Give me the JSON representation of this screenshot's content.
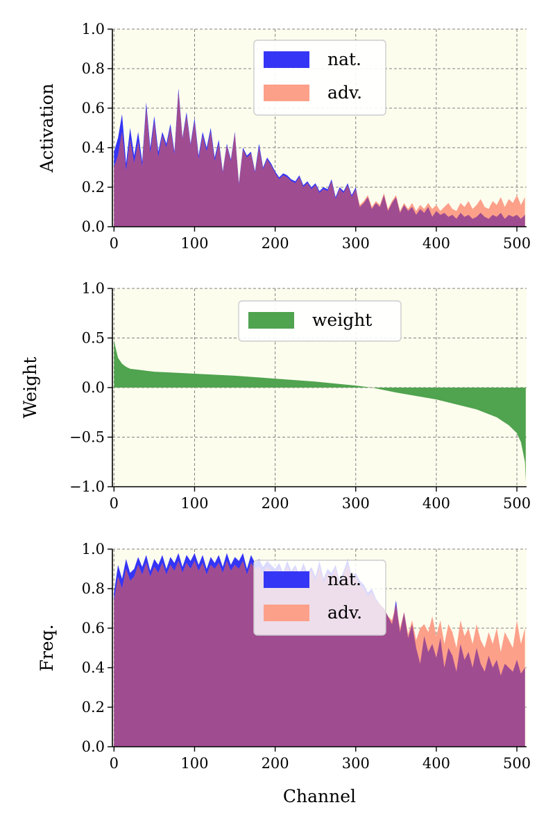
{
  "colors": {
    "plot_bg": "#fdfdee",
    "grid": "#808080",
    "nat": "#3535f5",
    "adv": "#fca08a",
    "overlap": "#a04c91",
    "weight": "#50a34f"
  },
  "chart_data": [
    {
      "type": "area",
      "ylabel": "Activation",
      "xlabel": "",
      "xlim": [
        -2,
        512
      ],
      "ylim": [
        0,
        1.0
      ],
      "xticks": [
        0,
        100,
        200,
        300,
        400,
        500
      ],
      "yticks": [
        0.0,
        0.2,
        0.4,
        0.6,
        0.8,
        1.0
      ],
      "ytick_labels": [
        "0.0",
        "0.2",
        "0.4",
        "0.6",
        "0.8",
        "1.0"
      ],
      "grid": true,
      "legend_position": "top-center",
      "series": [
        {
          "name": "nat.",
          "color": "#3535f5",
          "x": [
            0,
            5,
            10,
            15,
            20,
            25,
            30,
            35,
            40,
            45,
            50,
            55,
            60,
            65,
            70,
            75,
            80,
            85,
            90,
            95,
            100,
            105,
            110,
            115,
            120,
            125,
            130,
            135,
            140,
            145,
            150,
            155,
            160,
            165,
            170,
            175,
            180,
            185,
            190,
            195,
            200,
            205,
            210,
            215,
            220,
            225,
            230,
            235,
            240,
            245,
            250,
            255,
            260,
            265,
            270,
            275,
            280,
            285,
            290,
            295,
            300,
            305,
            310,
            315,
            320,
            325,
            330,
            335,
            340,
            345,
            350,
            355,
            360,
            365,
            370,
            375,
            380,
            385,
            390,
            395,
            400,
            405,
            410,
            415,
            420,
            425,
            430,
            435,
            440,
            445,
            450,
            455,
            460,
            465,
            470,
            475,
            480,
            485,
            490,
            495,
            500,
            505,
            510
          ],
          "values": [
            0.38,
            0.45,
            0.57,
            0.32,
            0.5,
            0.36,
            0.48,
            0.33,
            0.63,
            0.4,
            0.56,
            0.38,
            0.48,
            0.42,
            0.52,
            0.38,
            0.7,
            0.45,
            0.58,
            0.42,
            0.55,
            0.36,
            0.48,
            0.4,
            0.5,
            0.35,
            0.44,
            0.28,
            0.42,
            0.34,
            0.48,
            0.22,
            0.4,
            0.36,
            0.38,
            0.28,
            0.42,
            0.3,
            0.35,
            0.32,
            0.28,
            0.25,
            0.27,
            0.26,
            0.24,
            0.23,
            0.26,
            0.21,
            0.23,
            0.2,
            0.22,
            0.18,
            0.2,
            0.19,
            0.24,
            0.15,
            0.2,
            0.18,
            0.22,
            0.16,
            0.2,
            0.1,
            0.12,
            0.15,
            0.09,
            0.12,
            0.1,
            0.16,
            0.08,
            0.12,
            0.15,
            0.07,
            0.11,
            0.08,
            0.1,
            0.06,
            0.09,
            0.07,
            0.1,
            0.05,
            0.08,
            0.06,
            0.07,
            0.05,
            0.06,
            0.04,
            0.07,
            0.05,
            0.06,
            0.04,
            0.05,
            0.07,
            0.05,
            0.04,
            0.06,
            0.05,
            0.07,
            0.04,
            0.06,
            0.05,
            0.06,
            0.04,
            0.06
          ]
        },
        {
          "name": "adv.",
          "color": "#fca08a",
          "x": [
            0,
            5,
            10,
            15,
            20,
            25,
            30,
            35,
            40,
            45,
            50,
            55,
            60,
            65,
            70,
            75,
            80,
            85,
            90,
            95,
            100,
            105,
            110,
            115,
            120,
            125,
            130,
            135,
            140,
            145,
            150,
            155,
            160,
            165,
            170,
            175,
            180,
            185,
            190,
            195,
            200,
            205,
            210,
            215,
            220,
            225,
            230,
            235,
            240,
            245,
            250,
            255,
            260,
            265,
            270,
            275,
            280,
            285,
            290,
            295,
            300,
            305,
            310,
            315,
            320,
            325,
            330,
            335,
            340,
            345,
            350,
            355,
            360,
            365,
            370,
            375,
            380,
            385,
            390,
            395,
            400,
            405,
            410,
            415,
            420,
            425,
            430,
            435,
            440,
            445,
            450,
            455,
            460,
            465,
            470,
            475,
            480,
            485,
            490,
            495,
            500,
            505,
            510
          ],
          "values": [
            0.3,
            0.36,
            0.48,
            0.28,
            0.44,
            0.32,
            0.43,
            0.3,
            0.6,
            0.37,
            0.53,
            0.35,
            0.46,
            0.4,
            0.5,
            0.36,
            0.68,
            0.44,
            0.56,
            0.41,
            0.53,
            0.34,
            0.46,
            0.38,
            0.48,
            0.33,
            0.42,
            0.27,
            0.41,
            0.33,
            0.47,
            0.21,
            0.39,
            0.35,
            0.37,
            0.27,
            0.4,
            0.29,
            0.34,
            0.31,
            0.27,
            0.24,
            0.26,
            0.25,
            0.23,
            0.22,
            0.25,
            0.2,
            0.22,
            0.19,
            0.21,
            0.17,
            0.19,
            0.18,
            0.23,
            0.14,
            0.19,
            0.17,
            0.21,
            0.15,
            0.19,
            0.11,
            0.13,
            0.16,
            0.1,
            0.13,
            0.11,
            0.17,
            0.09,
            0.13,
            0.16,
            0.08,
            0.12,
            0.09,
            0.12,
            0.08,
            0.11,
            0.09,
            0.12,
            0.09,
            0.11,
            0.08,
            0.1,
            0.12,
            0.09,
            0.08,
            0.12,
            0.1,
            0.13,
            0.09,
            0.11,
            0.14,
            0.1,
            0.09,
            0.13,
            0.11,
            0.15,
            0.1,
            0.14,
            0.12,
            0.16,
            0.11,
            0.15
          ]
        }
      ]
    },
    {
      "type": "area",
      "ylabel": "Weight",
      "xlabel": "",
      "xlim": [
        -2,
        512
      ],
      "ylim": [
        -1.0,
        1.0
      ],
      "xticks": [
        0,
        100,
        200,
        300,
        400,
        500
      ],
      "yticks": [
        -1.0,
        -0.5,
        0.0,
        0.5,
        1.0
      ],
      "ytick_labels": [
        "−1.0",
        "−0.5",
        "0.0",
        "0.5",
        "1.0"
      ],
      "grid": true,
      "legend_position": "top-center",
      "series": [
        {
          "name": "weight",
          "color": "#50a34f",
          "x": [
            0,
            2,
            5,
            10,
            15,
            20,
            30,
            40,
            50,
            75,
            100,
            150,
            200,
            250,
            300,
            320,
            350,
            400,
            450,
            475,
            490,
            500,
            505,
            510,
            511
          ],
          "values": [
            0.48,
            0.4,
            0.3,
            0.24,
            0.21,
            0.19,
            0.18,
            0.17,
            0.16,
            0.15,
            0.14,
            0.12,
            0.09,
            0.06,
            0.02,
            0.0,
            -0.05,
            -0.12,
            -0.22,
            -0.3,
            -0.38,
            -0.46,
            -0.55,
            -0.75,
            -0.95
          ]
        }
      ]
    },
    {
      "type": "area",
      "ylabel": "Freq.",
      "xlabel": "Channel",
      "xlim": [
        -2,
        512
      ],
      "ylim": [
        0,
        1.0
      ],
      "xticks": [
        0,
        100,
        200,
        300,
        400,
        500
      ],
      "yticks": [
        0.0,
        0.2,
        0.4,
        0.6,
        0.8,
        1.0
      ],
      "ytick_labels": [
        "0.0",
        "0.2",
        "0.4",
        "0.6",
        "0.8",
        "1.0"
      ],
      "grid": true,
      "legend_position": "upper-center",
      "series": [
        {
          "name": "nat.",
          "color": "#3535f5",
          "x": [
            0,
            5,
            10,
            15,
            20,
            25,
            30,
            35,
            40,
            45,
            50,
            55,
            60,
            65,
            70,
            75,
            80,
            85,
            90,
            95,
            100,
            105,
            110,
            115,
            120,
            125,
            130,
            135,
            140,
            145,
            150,
            155,
            160,
            165,
            170,
            175,
            180,
            185,
            190,
            195,
            200,
            205,
            210,
            215,
            220,
            225,
            230,
            235,
            240,
            245,
            250,
            255,
            260,
            265,
            270,
            275,
            280,
            285,
            290,
            295,
            300,
            305,
            310,
            315,
            320,
            325,
            330,
            335,
            340,
            345,
            350,
            355,
            360,
            365,
            370,
            375,
            380,
            385,
            390,
            395,
            400,
            405,
            410,
            415,
            420,
            425,
            430,
            435,
            440,
            445,
            450,
            455,
            460,
            465,
            470,
            475,
            480,
            485,
            490,
            495,
            500,
            505,
            510
          ],
          "values": [
            0.78,
            0.92,
            0.85,
            0.95,
            0.88,
            0.9,
            0.96,
            0.91,
            0.97,
            0.89,
            0.95,
            0.92,
            0.97,
            0.9,
            0.96,
            0.93,
            0.98,
            0.91,
            0.97,
            0.94,
            0.98,
            0.92,
            0.97,
            0.9,
            0.96,
            0.93,
            0.97,
            0.91,
            0.98,
            0.92,
            0.96,
            0.94,
            0.98,
            0.9,
            0.97,
            0.93,
            0.95,
            0.91,
            0.94,
            0.92,
            0.9,
            0.93,
            0.88,
            0.94,
            0.89,
            0.92,
            0.87,
            0.93,
            0.88,
            0.91,
            0.86,
            0.94,
            0.85,
            0.9,
            0.88,
            0.92,
            0.84,
            0.89,
            0.95,
            0.86,
            0.88,
            0.84,
            0.82,
            0.78,
            0.8,
            0.75,
            0.72,
            0.7,
            0.66,
            0.62,
            0.74,
            0.58,
            0.68,
            0.55,
            0.62,
            0.5,
            0.42,
            0.56,
            0.48,
            0.52,
            0.45,
            0.55,
            0.4,
            0.5,
            0.46,
            0.38,
            0.52,
            0.44,
            0.48,
            0.4,
            0.5,
            0.42,
            0.38,
            0.46,
            0.4,
            0.44,
            0.36,
            0.42,
            0.4,
            0.38,
            0.44,
            0.37,
            0.4
          ]
        },
        {
          "name": "adv.",
          "color": "#fca08a",
          "x": [
            0,
            5,
            10,
            15,
            20,
            25,
            30,
            35,
            40,
            45,
            50,
            55,
            60,
            65,
            70,
            75,
            80,
            85,
            90,
            95,
            100,
            105,
            110,
            115,
            120,
            125,
            130,
            135,
            140,
            145,
            150,
            155,
            160,
            165,
            170,
            175,
            180,
            185,
            190,
            195,
            200,
            205,
            210,
            215,
            220,
            225,
            230,
            235,
            240,
            245,
            250,
            255,
            260,
            265,
            270,
            275,
            280,
            285,
            290,
            295,
            300,
            305,
            310,
            315,
            320,
            325,
            330,
            335,
            340,
            345,
            350,
            355,
            360,
            365,
            370,
            375,
            380,
            385,
            390,
            395,
            400,
            405,
            410,
            415,
            420,
            425,
            430,
            435,
            440,
            445,
            450,
            455,
            460,
            465,
            470,
            475,
            480,
            485,
            490,
            495,
            500,
            505,
            510
          ],
          "values": [
            0.74,
            0.86,
            0.8,
            0.9,
            0.84,
            0.86,
            0.92,
            0.87,
            0.93,
            0.86,
            0.91,
            0.88,
            0.93,
            0.87,
            0.92,
            0.89,
            0.94,
            0.88,
            0.93,
            0.9,
            0.94,
            0.89,
            0.93,
            0.87,
            0.92,
            0.9,
            0.93,
            0.88,
            0.94,
            0.89,
            0.92,
            0.9,
            0.94,
            0.87,
            0.93,
            0.9,
            0.91,
            0.88,
            0.91,
            0.89,
            0.88,
            0.9,
            0.86,
            0.91,
            0.87,
            0.9,
            0.85,
            0.9,
            0.86,
            0.89,
            0.84,
            0.91,
            0.83,
            0.88,
            0.86,
            0.9,
            0.82,
            0.87,
            0.92,
            0.84,
            0.86,
            0.82,
            0.8,
            0.76,
            0.78,
            0.74,
            0.72,
            0.7,
            0.66,
            0.64,
            0.72,
            0.6,
            0.68,
            0.57,
            0.64,
            0.54,
            0.6,
            0.62,
            0.58,
            0.66,
            0.56,
            0.64,
            0.52,
            0.62,
            0.58,
            0.5,
            0.64,
            0.56,
            0.6,
            0.52,
            0.62,
            0.54,
            0.5,
            0.58,
            0.52,
            0.6,
            0.48,
            0.58,
            0.54,
            0.5,
            0.64,
            0.52,
            0.6
          ]
        }
      ]
    }
  ]
}
